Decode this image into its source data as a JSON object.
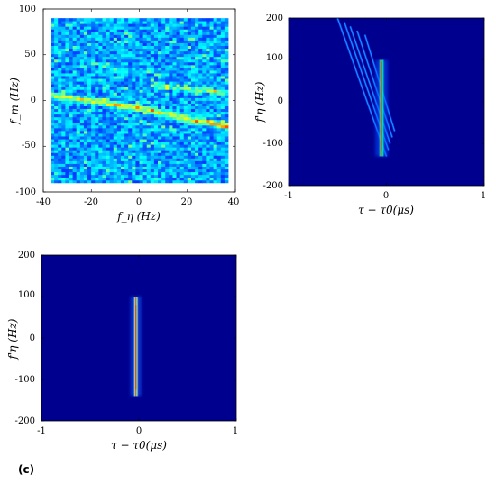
{
  "figure": {
    "panel_label": "(c)"
  },
  "chart_data": [
    {
      "type": "heatmap",
      "id": "top-left",
      "title": "",
      "xlabel": "f_η (Hz)",
      "ylabel": "f_m (Hz)",
      "xlim": [
        -40,
        40
      ],
      "ylim": [
        -100,
        100
      ],
      "data_extent": {
        "x": [
          -37,
          37
        ],
        "y": [
          -90,
          90
        ]
      },
      "x_ticks": [
        "-40",
        "-20",
        "0",
        "20",
        "40"
      ],
      "y_ticks": [
        "100",
        "50",
        "0",
        "-50",
        "-100"
      ],
      "colormap": "jet",
      "background_color": "#1b3ff7",
      "features": [
        {
          "name": "bright trace",
          "points": [
            [
              -37,
              6
            ],
            [
              -20,
              0
            ],
            [
              0,
              -8
            ],
            [
              20,
              -20
            ],
            [
              37,
              -28
            ]
          ]
        },
        {
          "name": "secondary trace",
          "points": [
            [
              5,
              17
            ],
            [
              20,
              13
            ],
            [
              37,
              9
            ]
          ]
        }
      ]
    },
    {
      "type": "heatmap",
      "id": "top-right",
      "title": "",
      "xlabel": "τ − τ0(μs)",
      "ylabel": "f'η (Hz)",
      "xlim": [
        -1,
        1
      ],
      "ylim": [
        -200,
        200
      ],
      "x_ticks": [
        "-1",
        "0",
        "1"
      ],
      "y_ticks": [
        "200",
        "100",
        "0",
        "-100",
        "-200"
      ],
      "colormap": "jet",
      "background_color": "#00008f",
      "features": [
        {
          "name": "main line",
          "x": -0.05,
          "y_range": [
            -130,
            100
          ],
          "peak_color": "#ff3b00"
        },
        {
          "name": "oblique streaks",
          "x_start": -0.5,
          "x_end": 0.0,
          "y_start": 200,
          "y_end": -130
        }
      ]
    },
    {
      "type": "heatmap",
      "id": "bottom-left",
      "title": "",
      "xlabel": "τ − τ0(μs)",
      "ylabel": "f'η (Hz)",
      "xlim": [
        -1,
        1
      ],
      "ylim": [
        -200,
        200
      ],
      "x_ticks": [
        "-1",
        "0",
        "1"
      ],
      "y_ticks": [
        "200",
        "100",
        "0",
        "-100",
        "-200"
      ],
      "colormap": "jet",
      "background_color": "#00008f",
      "features": [
        {
          "name": "focused line",
          "x": -0.03,
          "y_range": [
            -140,
            100
          ],
          "peak_color": "#ff3b00"
        }
      ]
    }
  ]
}
